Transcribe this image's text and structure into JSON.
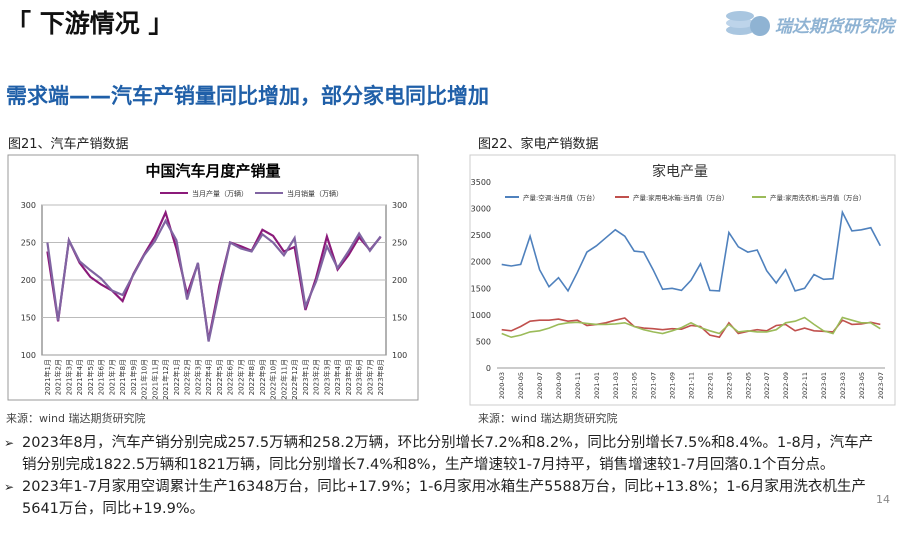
{
  "header": {
    "title": "「 下游情况 」",
    "logo": "瑞达期货研究院"
  },
  "subtitle": "需求端——汽车产销量同比增加，部分家电同比增加",
  "figures": [
    {
      "caption": "图21、汽车产销数据",
      "source": "来源：wind   瑞达期货研究院"
    },
    {
      "caption": "图22、家电产销数据",
      "source": "来源：wind   瑞达期货研究院"
    }
  ],
  "chart_data": [
    {
      "type": "line",
      "title": "中国汽车月度产销量",
      "legend": "top",
      "grid": true,
      "categories": [
        "2021年1月",
        "2021年2月",
        "2021年3月",
        "2021年4月",
        "2021年5月",
        "2021年6月",
        "2021年7月",
        "2021年8月",
        "2021年9月",
        "2021年10月",
        "2021年11月",
        "2021年12月",
        "2022年1月",
        "2022年2月",
        "2022年3月",
        "2022年4月",
        "2022年5月",
        "2022年6月",
        "2022年7月",
        "2022年8月",
        "2022年9月",
        "2022年10月",
        "2022年11月",
        "2022年12月",
        "2023年1月",
        "2023年2月",
        "2023年3月",
        "2023年4月",
        "2023年5月",
        "2023年6月",
        "2023年7月",
        "2023年8月"
      ],
      "series": [
        {
          "name": "当月产量（万辆）",
          "color": "#8b1a7a",
          "values": [
            238,
            145,
            253,
            223,
            204,
            194,
            186,
            172,
            208,
            234,
            258,
            290,
            242,
            181,
            222,
            120,
            193,
            250,
            245,
            239,
            267,
            259,
            238,
            244,
            160,
            203,
            258,
            214,
            233,
            257,
            240,
            257.5
          ]
        },
        {
          "name": "当月销量（万辆）",
          "color": "#8064a2",
          "values": [
            250,
            146,
            253,
            225,
            213,
            202,
            186,
            180,
            207,
            233,
            252,
            279,
            253,
            174,
            223,
            118,
            186,
            250,
            242,
            238,
            261,
            250,
            233,
            256,
            165,
            198,
            245,
            216,
            238,
            262,
            239,
            258.2
          ]
        }
      ],
      "ylim": [
        100,
        300
      ],
      "yticks": [
        100,
        150,
        200,
        250,
        300
      ],
      "y2lim": [
        100,
        300
      ],
      "y2ticks": [
        100,
        150,
        200,
        250,
        300
      ]
    },
    {
      "type": "line",
      "title": "家电产量",
      "legend": "top",
      "grid": false,
      "categories": [
        "2020-03",
        null,
        "2020-05",
        null,
        "2020-07",
        null,
        "2020-09",
        null,
        "2020-11",
        null,
        "2021-01",
        null,
        "2021-03",
        null,
        "2021-05",
        null,
        "2021-07",
        null,
        "2021-09",
        null,
        "2021-11",
        null,
        "2022-01",
        null,
        "2022-03",
        null,
        "2022-05",
        null,
        "2022-07",
        null,
        "2022-09",
        null,
        "2022-11",
        null,
        "2023-01",
        null,
        "2023-03",
        null,
        "2023-05",
        null,
        "2023-07"
      ],
      "series": [
        {
          "name": "产量:空调:当月值（万台）",
          "color": "#4f81bd",
          "values": [
            1950,
            1920,
            1950,
            2480,
            1850,
            1530,
            1700,
            1450,
            1800,
            2180,
            2300,
            2450,
            2600,
            2480,
            2200,
            2180,
            1850,
            1480,
            1500,
            1460,
            1650,
            1960,
            1460,
            1450,
            2550,
            2280,
            2180,
            2220,
            1830,
            1600,
            1850,
            1450,
            1500,
            1760,
            1670,
            1680,
            2930,
            2580,
            2600,
            2640,
            2300
          ]
        },
        {
          "name": "产量:家用电冰箱:当月值（万台）",
          "color": "#c0504d",
          "values": [
            720,
            700,
            780,
            880,
            900,
            900,
            920,
            880,
            900,
            800,
            820,
            850,
            900,
            940,
            780,
            750,
            740,
            720,
            740,
            730,
            800,
            780,
            620,
            580,
            850,
            650,
            690,
            720,
            700,
            800,
            820,
            700,
            750,
            700,
            690,
            680,
            900,
            820,
            830,
            860,
            820
          ]
        },
        {
          "name": "产量:家用洗衣机:当月值（万台）",
          "color": "#9bbb59",
          "values": [
            650,
            580,
            620,
            680,
            700,
            750,
            820,
            850,
            860,
            840,
            820,
            820,
            830,
            850,
            780,
            720,
            680,
            650,
            700,
            760,
            850,
            760,
            700,
            650,
            820,
            680,
            700,
            680,
            680,
            720,
            850,
            880,
            950,
            820,
            700,
            650,
            950,
            900,
            850,
            850,
            740
          ]
        }
      ],
      "ylim": [
        0,
        3500
      ],
      "yticks": [
        0,
        500,
        1000,
        1500,
        2000,
        2500,
        3000,
        3500
      ]
    }
  ],
  "bullets": [
    "2023年8月，汽车产销分别完成257.5万辆和258.2万辆，环比分别增长7.2%和8.2%，同比分别增长7.5%和8.4%。1-8月，汽车产销分别完成1822.5万辆和1821万辆，同比分别增长7.4%和8%，生产增速较1-7月持平，销售增速较1-7月回落0.1个百分点。",
    "2023年1-7月家用空调累计生产16348万台，同比+17.9%；1-6月家用冰箱生产5588万台，同比+13.8%；1-6月家用洗衣机生产5641万台，同比+19.9%。"
  ],
  "page_number": "14"
}
